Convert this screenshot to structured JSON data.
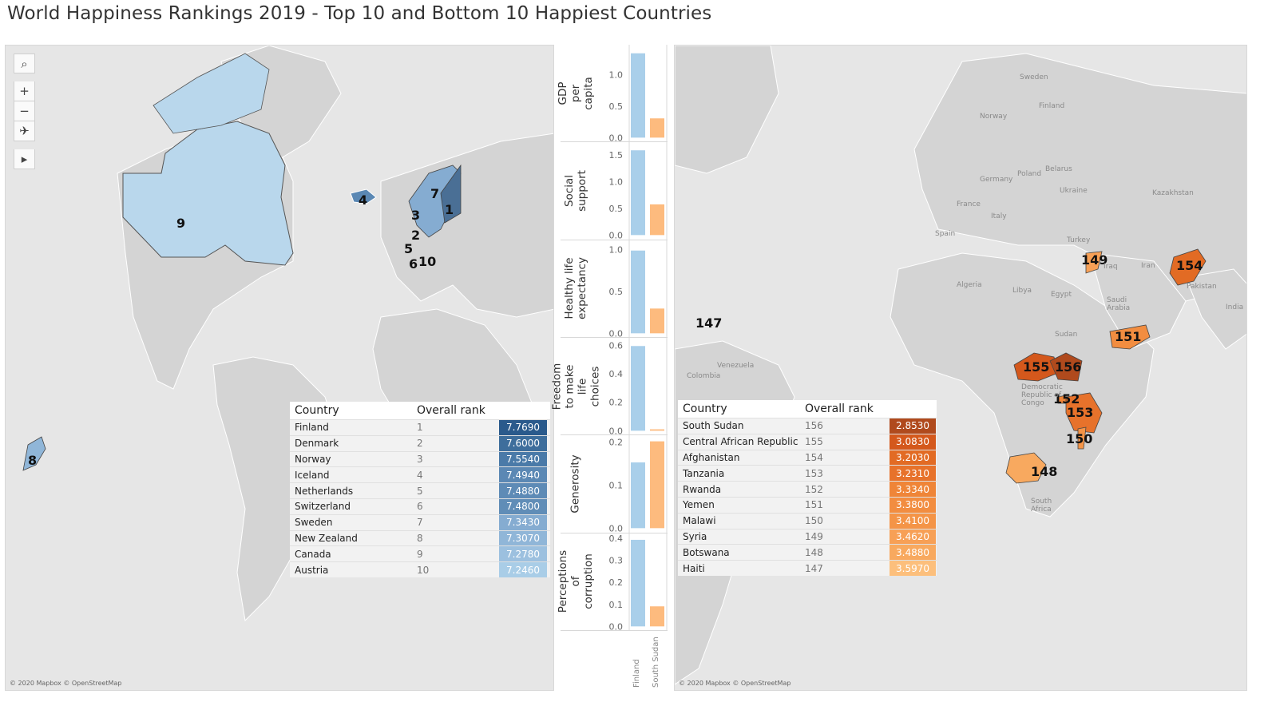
{
  "title": "World Happiness Rankings 2019 - Top 10 and Bottom 10 Happiest Countries",
  "attribution": "© 2020 Mapbox © OpenStreetMap",
  "toolbar": {
    "icons": [
      "search-icon",
      "zoom-in-icon",
      "zoom-out-icon",
      "pin-reset-icon",
      "expand-arrow-icon"
    ],
    "zoom_in": "+",
    "zoom_out": "−"
  },
  "colors": {
    "top_bar": "#a9cfea",
    "bottom_bar": "#fdbb7e",
    "land": "#d4d4d4",
    "water": "#e6e6e6"
  },
  "left_map": {
    "labels": [
      "1",
      "2",
      "3",
      "4",
      "5",
      "6",
      "7",
      "8",
      "9",
      "10"
    ]
  },
  "right_map": {
    "labels": [
      "147",
      "148",
      "149",
      "150",
      "151",
      "152",
      "153",
      "154",
      "155",
      "156"
    ],
    "places": [
      "Sweden",
      "Finland",
      "Norway",
      "Poland",
      "Belarus",
      "Germany",
      "Ukraine",
      "Kazakhstan",
      "France",
      "Italy",
      "Spain",
      "Turkey",
      "Iran",
      "Iraq",
      "Pakistan",
      "India",
      "Algeria",
      "Libya",
      "Egypt",
      "Saudi Arabia",
      "Sudan",
      "Venezuela",
      "Colombia",
      "Democratic Republic of Congo",
      "South Africa"
    ]
  },
  "top_table": {
    "headers": [
      "Country",
      "Overall rank"
    ],
    "rows": [
      {
        "country": "Finland",
        "rank": "1",
        "score": "7.7690",
        "color": "#2a5a8c"
      },
      {
        "country": "Denmark",
        "rank": "2",
        "score": "7.6000",
        "color": "#3e6e9c"
      },
      {
        "country": "Norway",
        "rank": "3",
        "score": "7.5540",
        "color": "#4a7aa8"
      },
      {
        "country": "Iceland",
        "rank": "4",
        "score": "7.4940",
        "color": "#5b88b4"
      },
      {
        "country": "Netherlands",
        "rank": "5",
        "score": "7.4880",
        "color": "#5e8bb6"
      },
      {
        "country": "Switzerland",
        "rank": "6",
        "score": "7.4800",
        "color": "#608db7"
      },
      {
        "country": "Sweden",
        "rank": "7",
        "score": "7.3430",
        "color": "#85acd1"
      },
      {
        "country": "New Zealand",
        "rank": "8",
        "score": "7.3070",
        "color": "#90b6d8"
      },
      {
        "country": "Canada",
        "rank": "9",
        "score": "7.2780",
        "color": "#9cc0df"
      },
      {
        "country": "Austria",
        "rank": "10",
        "score": "7.2460",
        "color": "#a9cde7"
      }
    ]
  },
  "bottom_table": {
    "headers": [
      "Country",
      "Overall rank"
    ],
    "rows": [
      {
        "country": "South Sudan",
        "rank": "156",
        "score": "2.8530",
        "color": "#b04a1d"
      },
      {
        "country": "Central African Republic",
        "rank": "155",
        "score": "3.0830",
        "color": "#d4581c"
      },
      {
        "country": "Afghanistan",
        "rank": "154",
        "score": "3.2030",
        "color": "#e26b24"
      },
      {
        "country": "Tanzania",
        "rank": "153",
        "score": "3.2310",
        "color": "#e7722b"
      },
      {
        "country": "Rwanda",
        "rank": "152",
        "score": "3.3340",
        "color": "#ef8538"
      },
      {
        "country": "Yemen",
        "rank": "151",
        "score": "3.3800",
        "color": "#f28d40"
      },
      {
        "country": "Malawi",
        "rank": "150",
        "score": "3.4100",
        "color": "#f49447"
      },
      {
        "country": "Syria",
        "rank": "149",
        "score": "3.4620",
        "color": "#f7a056"
      },
      {
        "country": "Botswana",
        "rank": "148",
        "score": "3.4880",
        "color": "#f8a95f"
      },
      {
        "country": "Haiti",
        "rank": "147",
        "score": "3.5970",
        "color": "#fcbf7c"
      }
    ]
  },
  "chart_data": {
    "type": "bar",
    "categories": [
      "Finland",
      "South Sudan"
    ],
    "metrics": [
      {
        "name": "GDP per capita",
        "values": [
          1.34,
          0.306
        ],
        "ylim": [
          0,
          1.4
        ],
        "ticks": [
          "1.0",
          "0.5",
          "0.0"
        ],
        "tick_values": [
          1.0,
          0.5,
          0.0
        ]
      },
      {
        "name": "Social support",
        "values": [
          1.587,
          0.575
        ],
        "ylim": [
          0,
          1.65
        ],
        "ticks": [
          "1.5",
          "1.0",
          "0.5",
          "0.0"
        ],
        "tick_values": [
          1.5,
          1.0,
          0.5,
          0.0
        ]
      },
      {
        "name": "Healthy life expectancy",
        "values": [
          0.986,
          0.295
        ],
        "ylim": [
          0,
          1.05
        ],
        "ticks": [
          "1.0",
          "0.5",
          "0.0"
        ],
        "tick_values": [
          1.0,
          0.5,
          0.0
        ]
      },
      {
        "name": "Freedom to make life choices",
        "values": [
          0.596,
          0.01
        ],
        "ylim": [
          0,
          0.62
        ],
        "ticks": [
          "0.6",
          "0.4",
          "0.2",
          "0.0"
        ],
        "tick_values": [
          0.6,
          0.4,
          0.2,
          0.0
        ]
      },
      {
        "name": "Generosity",
        "values": [
          0.153,
          0.202
        ],
        "ylim": [
          0,
          0.205
        ],
        "ticks": [
          "0.2",
          "0.1",
          "0.0"
        ],
        "tick_values": [
          0.2,
          0.1,
          0.0
        ]
      },
      {
        "name": "Perceptions of corruption",
        "values": [
          0.393,
          0.091
        ],
        "ylim": [
          0,
          0.4
        ],
        "ticks": [
          "0.4",
          "0.3",
          "0.2",
          "0.1",
          "0.0"
        ],
        "tick_values": [
          0.4,
          0.3,
          0.2,
          0.1,
          0.0
        ]
      }
    ]
  }
}
